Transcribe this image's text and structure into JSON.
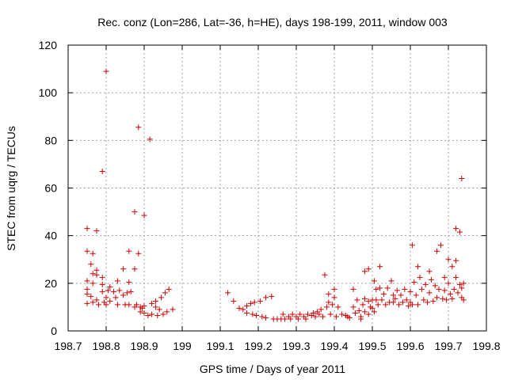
{
  "chart_data": {
    "type": "scatter",
    "title": "Rec. conz (Lon=286, Lat=-36, h=HE), days 198-199, 2011, window 003",
    "xlabel": "GPS time / Days of year 2011",
    "ylabel": "STEC from uqrg / TECUs",
    "xlim": [
      198.7,
      199.8
    ],
    "ylim": [
      0,
      120
    ],
    "grid": true,
    "xticks": [
      198.7,
      198.8,
      198.9,
      199,
      199.1,
      199.2,
      199.3,
      199.4,
      199.5,
      199.6,
      199.7,
      199.8
    ],
    "xtick_labels": [
      "198.7",
      "198.8",
      "198.9",
      "199",
      "199.1",
      "199.2",
      "199.3",
      "199.4",
      "199.5",
      "199.6",
      "199.7",
      "199.8"
    ],
    "yticks": [
      0,
      20,
      40,
      60,
      80,
      100,
      120
    ],
    "ytick_labels": [
      "0",
      "20",
      "40",
      "60",
      "80",
      "100",
      "120"
    ],
    "marker": "+",
    "color": "#cc0000",
    "series": [
      {
        "name": "STEC",
        "points": [
          [
            198.75,
            43
          ],
          [
            198.75,
            33.5
          ],
          [
            198.75,
            21
          ],
          [
            198.75,
            17.5
          ],
          [
            198.75,
            15.5
          ],
          [
            198.75,
            11.5
          ],
          [
            198.765,
            32.5
          ],
          [
            198.76,
            28
          ],
          [
            198.765,
            24
          ],
          [
            198.765,
            20
          ],
          [
            198.76,
            14.5
          ],
          [
            198.765,
            12
          ],
          [
            198.775,
            42
          ],
          [
            198.775,
            25.5
          ],
          [
            198.775,
            23.5
          ],
          [
            198.775,
            13
          ],
          [
            198.78,
            11
          ],
          [
            198.79,
            67
          ],
          [
            198.79,
            22.5
          ],
          [
            198.79,
            19.5
          ],
          [
            198.79,
            16.5
          ],
          [
            198.795,
            12
          ],
          [
            198.8,
            109
          ],
          [
            198.8,
            14
          ],
          [
            198.8,
            11
          ],
          [
            198.805,
            17
          ],
          [
            198.81,
            12.5
          ],
          [
            198.81,
            18.5
          ],
          [
            198.82,
            16.5
          ],
          [
            198.825,
            14
          ],
          [
            198.83,
            21
          ],
          [
            198.83,
            11
          ],
          [
            198.835,
            17
          ],
          [
            198.845,
            26
          ],
          [
            198.845,
            15
          ],
          [
            198.85,
            11
          ],
          [
            198.855,
            16
          ],
          [
            198.86,
            33.5
          ],
          [
            198.86,
            20.5
          ],
          [
            198.86,
            11
          ],
          [
            198.865,
            16.5
          ],
          [
            198.875,
            50
          ],
          [
            198.875,
            26
          ],
          [
            198.875,
            10
          ],
          [
            198.88,
            11
          ],
          [
            198.885,
            85.5
          ],
          [
            198.885,
            32.5
          ],
          [
            198.89,
            10
          ],
          [
            198.89,
            8
          ],
          [
            198.895,
            9.5
          ],
          [
            198.9,
            48.5
          ],
          [
            198.9,
            10.5
          ],
          [
            198.9,
            7.5
          ],
          [
            198.91,
            6.5
          ],
          [
            198.915,
            80.5
          ],
          [
            198.92,
            11.5
          ],
          [
            198.92,
            7
          ],
          [
            198.93,
            12.5
          ],
          [
            198.93,
            10
          ],
          [
            198.935,
            6.5
          ],
          [
            198.94,
            9
          ],
          [
            198.945,
            14
          ],
          [
            198.95,
            7
          ],
          [
            198.955,
            16
          ],
          [
            198.96,
            8
          ],
          [
            198.965,
            17.5
          ],
          [
            198.975,
            9
          ],
          [
            199.12,
            16
          ],
          [
            199.135,
            12.5
          ],
          [
            199.15,
            9.5
          ],
          [
            199.16,
            9
          ],
          [
            199.17,
            10.5
          ],
          [
            199.17,
            7.5
          ],
          [
            199.18,
            11.5
          ],
          [
            199.185,
            7
          ],
          [
            199.19,
            12
          ],
          [
            199.195,
            6.5
          ],
          [
            199.205,
            12.5
          ],
          [
            199.21,
            6
          ],
          [
            199.22,
            14
          ],
          [
            199.22,
            5.5
          ],
          [
            199.235,
            14.5
          ],
          [
            199.24,
            5
          ],
          [
            199.25,
            5
          ],
          [
            199.26,
            5
          ],
          [
            199.265,
            7
          ],
          [
            199.27,
            5
          ],
          [
            199.28,
            6
          ],
          [
            199.285,
            5
          ],
          [
            199.29,
            7
          ],
          [
            199.3,
            6
          ],
          [
            199.305,
            5
          ],
          [
            199.31,
            7
          ],
          [
            199.32,
            6
          ],
          [
            199.325,
            5
          ],
          [
            199.33,
            7
          ],
          [
            199.34,
            6.5
          ],
          [
            199.345,
            7.5
          ],
          [
            199.35,
            6
          ],
          [
            199.355,
            8
          ],
          [
            199.36,
            7
          ],
          [
            199.365,
            9
          ],
          [
            199.37,
            6
          ],
          [
            199.375,
            23.5
          ],
          [
            199.38,
            10
          ],
          [
            199.385,
            15.5
          ],
          [
            199.385,
            12
          ],
          [
            199.39,
            7
          ],
          [
            199.395,
            11
          ],
          [
            199.4,
            17.5
          ],
          [
            199.4,
            14
          ],
          [
            199.405,
            6
          ],
          [
            199.41,
            10
          ],
          [
            199.42,
            7
          ],
          [
            199.43,
            6.5
          ],
          [
            199.435,
            6
          ],
          [
            199.44,
            5.5
          ],
          [
            199.45,
            17.5
          ],
          [
            199.45,
            10
          ],
          [
            199.455,
            7.5
          ],
          [
            199.46,
            13
          ],
          [
            199.465,
            8.5
          ],
          [
            199.47,
            6
          ],
          [
            199.47,
            5
          ],
          [
            199.475,
            11
          ],
          [
            199.48,
            25
          ],
          [
            199.48,
            13.5
          ],
          [
            199.48,
            8
          ],
          [
            199.49,
            26
          ],
          [
            199.49,
            12.5
          ],
          [
            199.49,
            7
          ],
          [
            199.495,
            10
          ],
          [
            199.5,
            13
          ],
          [
            199.5,
            9.5
          ],
          [
            199.505,
            21
          ],
          [
            199.505,
            8
          ],
          [
            199.51,
            17.5
          ],
          [
            199.51,
            13
          ],
          [
            199.515,
            11
          ],
          [
            199.52,
            27
          ],
          [
            199.52,
            18
          ],
          [
            199.525,
            13
          ],
          [
            199.53,
            15.5
          ],
          [
            199.535,
            11
          ],
          [
            199.54,
            18
          ],
          [
            199.545,
            12
          ],
          [
            199.55,
            21
          ],
          [
            199.555,
            15
          ],
          [
            199.555,
            12
          ],
          [
            199.56,
            13.5
          ],
          [
            199.565,
            17
          ],
          [
            199.57,
            11
          ],
          [
            199.575,
            15
          ],
          [
            199.58,
            12
          ],
          [
            199.585,
            17.5
          ],
          [
            199.59,
            13
          ],
          [
            199.595,
            10.5
          ],
          [
            199.6,
            16.5
          ],
          [
            199.6,
            12
          ],
          [
            199.605,
            36
          ],
          [
            199.605,
            11
          ],
          [
            199.61,
            20.5
          ],
          [
            199.615,
            15
          ],
          [
            199.62,
            27
          ],
          [
            199.62,
            11
          ],
          [
            199.625,
            22.5
          ],
          [
            199.63,
            17.5
          ],
          [
            199.635,
            13
          ],
          [
            199.64,
            19.5
          ],
          [
            199.645,
            12
          ],
          [
            199.65,
            25
          ],
          [
            199.65,
            16
          ],
          [
            199.655,
            21.5
          ],
          [
            199.66,
            12.5
          ],
          [
            199.665,
            19
          ],
          [
            199.67,
            33.5
          ],
          [
            199.67,
            14
          ],
          [
            199.675,
            17.5
          ],
          [
            199.68,
            36
          ],
          [
            199.685,
            13.5
          ],
          [
            199.69,
            22.5
          ],
          [
            199.69,
            17
          ],
          [
            199.695,
            13
          ],
          [
            199.7,
            30
          ],
          [
            199.7,
            20
          ],
          [
            199.705,
            15.5
          ],
          [
            199.71,
            27
          ],
          [
            199.71,
            13.5
          ],
          [
            199.715,
            17.5
          ],
          [
            199.72,
            43
          ],
          [
            199.72,
            29.5
          ],
          [
            199.72,
            22.5
          ],
          [
            199.725,
            16
          ],
          [
            199.73,
            41.5
          ],
          [
            199.73,
            19.5
          ],
          [
            199.735,
            64
          ],
          [
            199.735,
            18
          ],
          [
            199.735,
            14
          ],
          [
            199.74,
            20
          ],
          [
            199.74,
            13
          ]
        ]
      }
    ]
  }
}
